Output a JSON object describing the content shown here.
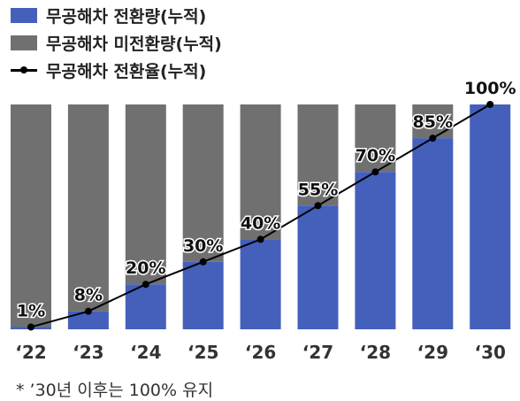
{
  "legend": [
    {
      "label": "무공해차 전환량(누적)",
      "color": "#4460bb",
      "kind": "swatch"
    },
    {
      "label": "무공해차 미전환량(누적)",
      "color": "#707070",
      "kind": "swatch"
    },
    {
      "label": "무공해차 전환율(누적)",
      "color": "#000000",
      "kind": "line"
    }
  ],
  "chart_data": {
    "type": "bar",
    "stacked": true,
    "categories": [
      "‘22",
      "‘23",
      "‘24",
      "‘25",
      "‘26",
      "‘27",
      "‘28",
      "‘29",
      "‘30"
    ],
    "series": [
      {
        "name": "무공해차 전환량(누적)",
        "color": "#4460bb",
        "values": [
          1,
          8,
          20,
          30,
          40,
          55,
          70,
          85,
          100
        ]
      },
      {
        "name": "무공해차 미전환량(누적)",
        "color": "#707070",
        "values": [
          99,
          92,
          80,
          70,
          60,
          45,
          30,
          15,
          0
        ]
      },
      {
        "name": "무공해차 전환율(누적)",
        "color": "#000000",
        "type": "line",
        "values": [
          1,
          8,
          20,
          30,
          40,
          55,
          70,
          85,
          100
        ]
      }
    ],
    "data_labels": [
      "1%",
      "8%",
      "20%",
      "30%",
      "40%",
      "55%",
      "70%",
      "85%",
      "100%"
    ],
    "grid": false
  },
  "footnote": "* ’30년 이후는 100% 유지"
}
